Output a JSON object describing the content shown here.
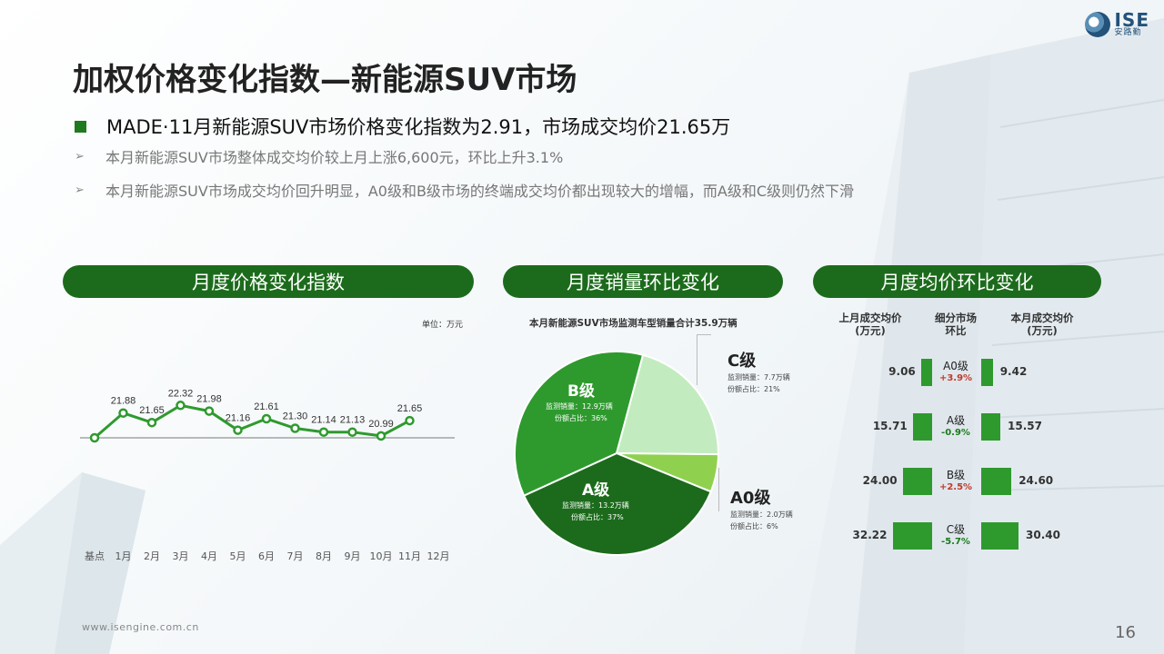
{
  "logo": {
    "en": "ISE",
    "cn": "安路勤"
  },
  "title": "加权价格变化指数—新能源SUV市场",
  "headline": "MADE·11月新能源SUV市场价格变化指数为2.91，市场成交均价21.65万",
  "bullets": [
    "本月新能源SUV市场整体成交均价较上月上涨6,600元，环比上升3.1%",
    "本月新能源SUV市场成交均价回升明显，A0级和B级市场的终端成交均价都出现较大的增幅，而A级和C级则仍然下滑"
  ],
  "bullet_icon": "arrow-bullet-icon",
  "colors": {
    "dark_green": "#1c6b1c",
    "green": "#2e9a2e",
    "light_green": "#c2ecbf",
    "lime": "#8fd14f",
    "up": "#c0392b",
    "down": "#1b7a1b"
  },
  "sections": {
    "index": "月度价格变化指数",
    "volume": "月度销量环比变化",
    "price": "月度均价环比变化"
  },
  "line_chart": {
    "unit": "单位：万元",
    "months": [
      "基点",
      "1月",
      "2月",
      "3月",
      "4月",
      "5月",
      "6月",
      "7月",
      "8月",
      "9月",
      "10月",
      "11月",
      "12月"
    ],
    "labels": [
      "",
      "21.88",
      "21.65",
      "22.32",
      "21.98",
      "21.16",
      "21.61",
      "21.30",
      "21.14",
      "21.13",
      "20.99",
      "21.65",
      ""
    ]
  },
  "pie": {
    "caption": "本月新能源SUV市场监测车型销量合计35.9万辆",
    "segments": {
      "b": {
        "name": "B级",
        "sales": "监测销量：12.9万辆",
        "share": "份额占比：36%"
      },
      "c": {
        "name": "C级",
        "sales": "监测销量：7.7万辆",
        "share": "份额占比：21%"
      },
      "a0": {
        "name": "A0级",
        "sales": "监测销量：2.0万辆",
        "share": "份额占比：6%"
      },
      "a": {
        "name": "A级",
        "sales": "监测销量：13.2万辆",
        "share": "份额占比：37%"
      }
    }
  },
  "price_table": {
    "head_last": "上月成交均价\n(万元)",
    "head_change": "细分市场\n环比",
    "head_this": "本月成交均价\n(万元)",
    "rows": [
      {
        "last": "9.06",
        "name": "A0级",
        "change": "+3.9%",
        "this": "9.42",
        "dir": "up"
      },
      {
        "last": "15.71",
        "name": "A级",
        "change": "-0.9%",
        "this": "15.57",
        "dir": "down"
      },
      {
        "last": "24.00",
        "name": "B级",
        "change": "+2.5%",
        "this": "24.60",
        "dir": "up"
      },
      {
        "last": "32.22",
        "name": "C级",
        "change": "-5.7%",
        "this": "30.40",
        "dir": "down"
      }
    ]
  },
  "chart_data": [
    {
      "type": "line",
      "title": "月度价格变化指数",
      "unit": "单位：万元",
      "categories": [
        "基点",
        "1月",
        "2月",
        "3月",
        "4月",
        "5月",
        "6月",
        "7月",
        "8月",
        "9月",
        "10月",
        "11月",
        "12月"
      ],
      "series": [
        {
          "values": [
            null,
            21.88,
            21.65,
            22.32,
            21.98,
            21.16,
            21.61,
            21.3,
            21.14,
            21.13,
            20.99,
            21.65,
            null
          ]
        }
      ],
      "index_values": [
        0,
        1.3,
        0.8,
        1.7,
        1.4,
        0.4,
        1.0,
        0.5,
        0.3,
        0.3,
        0.1,
        0.9
      ]
    },
    {
      "type": "pie",
      "title": "月度销量环比变化",
      "labels": [
        "B级",
        "C级",
        "A0级",
        "A级"
      ],
      "values": [
        36,
        21,
        6,
        37
      ],
      "sales": [
        12.9,
        7.7,
        2.0,
        13.2
      ]
    },
    {
      "type": "bar",
      "title": "月度均价环比变化",
      "categories": [
        "A0级",
        "A级",
        "B级",
        "C级"
      ],
      "series": [
        {
          "name": "上月成交均价(万元)",
          "values": [
            9.06,
            15.71,
            24.0,
            32.22
          ]
        },
        {
          "name": "本月成交均价(万元)",
          "values": [
            9.42,
            15.57,
            24.6,
            30.4
          ]
        }
      ],
      "changes": [
        "+3.9%",
        "-0.9%",
        "+2.5%",
        "-5.7%"
      ]
    }
  ],
  "footer": {
    "url": "www.isengine.com.cn",
    "page": "16"
  }
}
